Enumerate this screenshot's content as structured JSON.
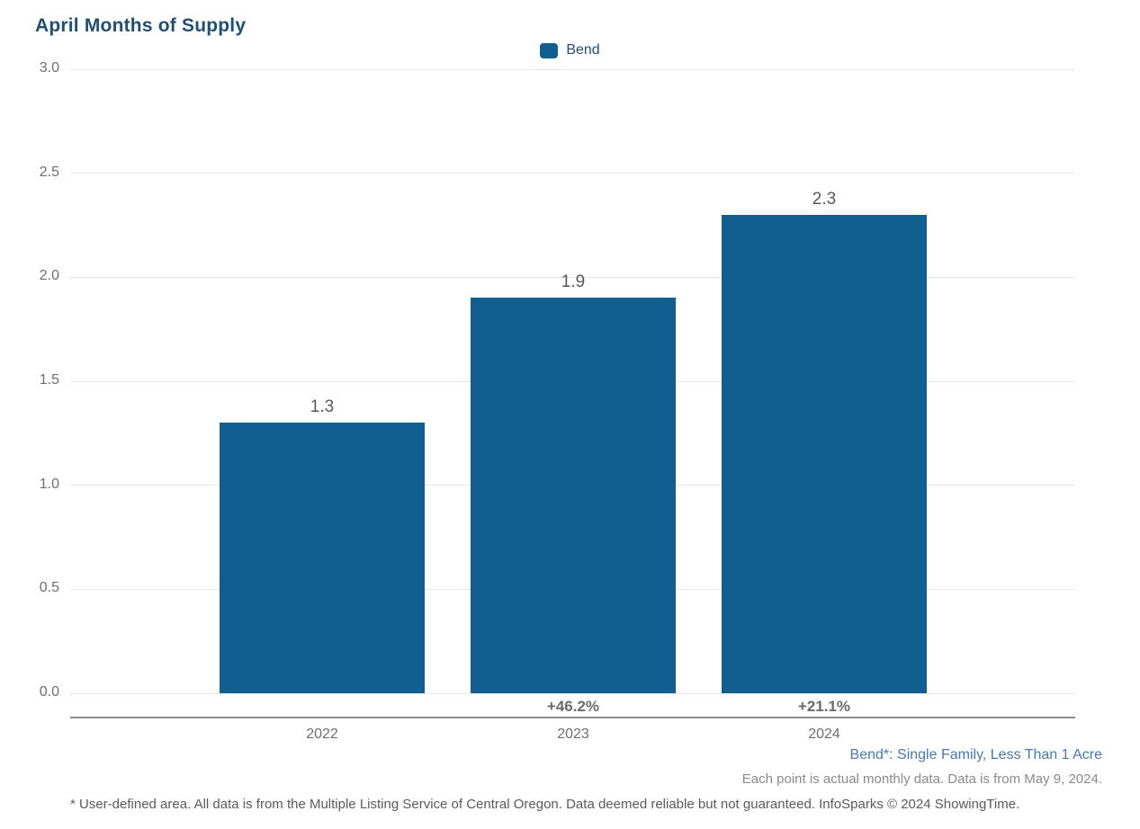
{
  "title": "April Months of Supply",
  "legend": {
    "position": "top-center",
    "items": [
      {
        "label": "Bend",
        "color": "#115E90"
      }
    ]
  },
  "chart_data": {
    "type": "bar",
    "title": "April Months of Supply",
    "categories": [
      "2022",
      "2023",
      "2024"
    ],
    "series": [
      {
        "name": "Bend",
        "values": [
          1.3,
          1.9,
          2.3
        ],
        "color": "#115E90"
      }
    ],
    "value_labels": [
      "1.3",
      "1.9",
      "2.3"
    ],
    "pct_change_labels": [
      null,
      "+46.2%",
      "+21.1%"
    ],
    "xlabel": "",
    "ylabel": "",
    "ylim": [
      0.0,
      3.0
    ],
    "yticks": [
      0.0,
      0.5,
      1.0,
      1.5,
      2.0,
      2.5,
      3.0
    ],
    "ytick_labels": [
      "0.0",
      "0.5",
      "1.0",
      "1.5",
      "2.0",
      "2.5",
      "3.0"
    ],
    "grid": true,
    "legend_position": "top-center"
  },
  "footnotes": {
    "series_definition": "Bend*: Single Family, Less Than 1 Acre",
    "data_note": "Each point is actual monthly data. Data is from May 9, 2024.",
    "disclaimer": "* User-defined area. All data is from the Multiple Listing Service of Central Oregon. Data deemed reliable but not guaranteed. InfoSparks © 2024 ShowingTime."
  },
  "colors": {
    "title_text": "#1F4E79",
    "legend_text": "#1F4E79",
    "bar": "#115E90",
    "gridline": "#E6E6E6",
    "axis_line": "#8C8C8C",
    "tick_text": "#6E6E6E",
    "value_text": "#595959",
    "pct_text": "#6B6B6B",
    "year_text": "#6E6E6E",
    "footnote_blue_text": "#4679B2",
    "footnote_gray_text": "#8A8A8A",
    "disclaimer_text": "#5A5A5A",
    "background": "#FFFFFF"
  }
}
